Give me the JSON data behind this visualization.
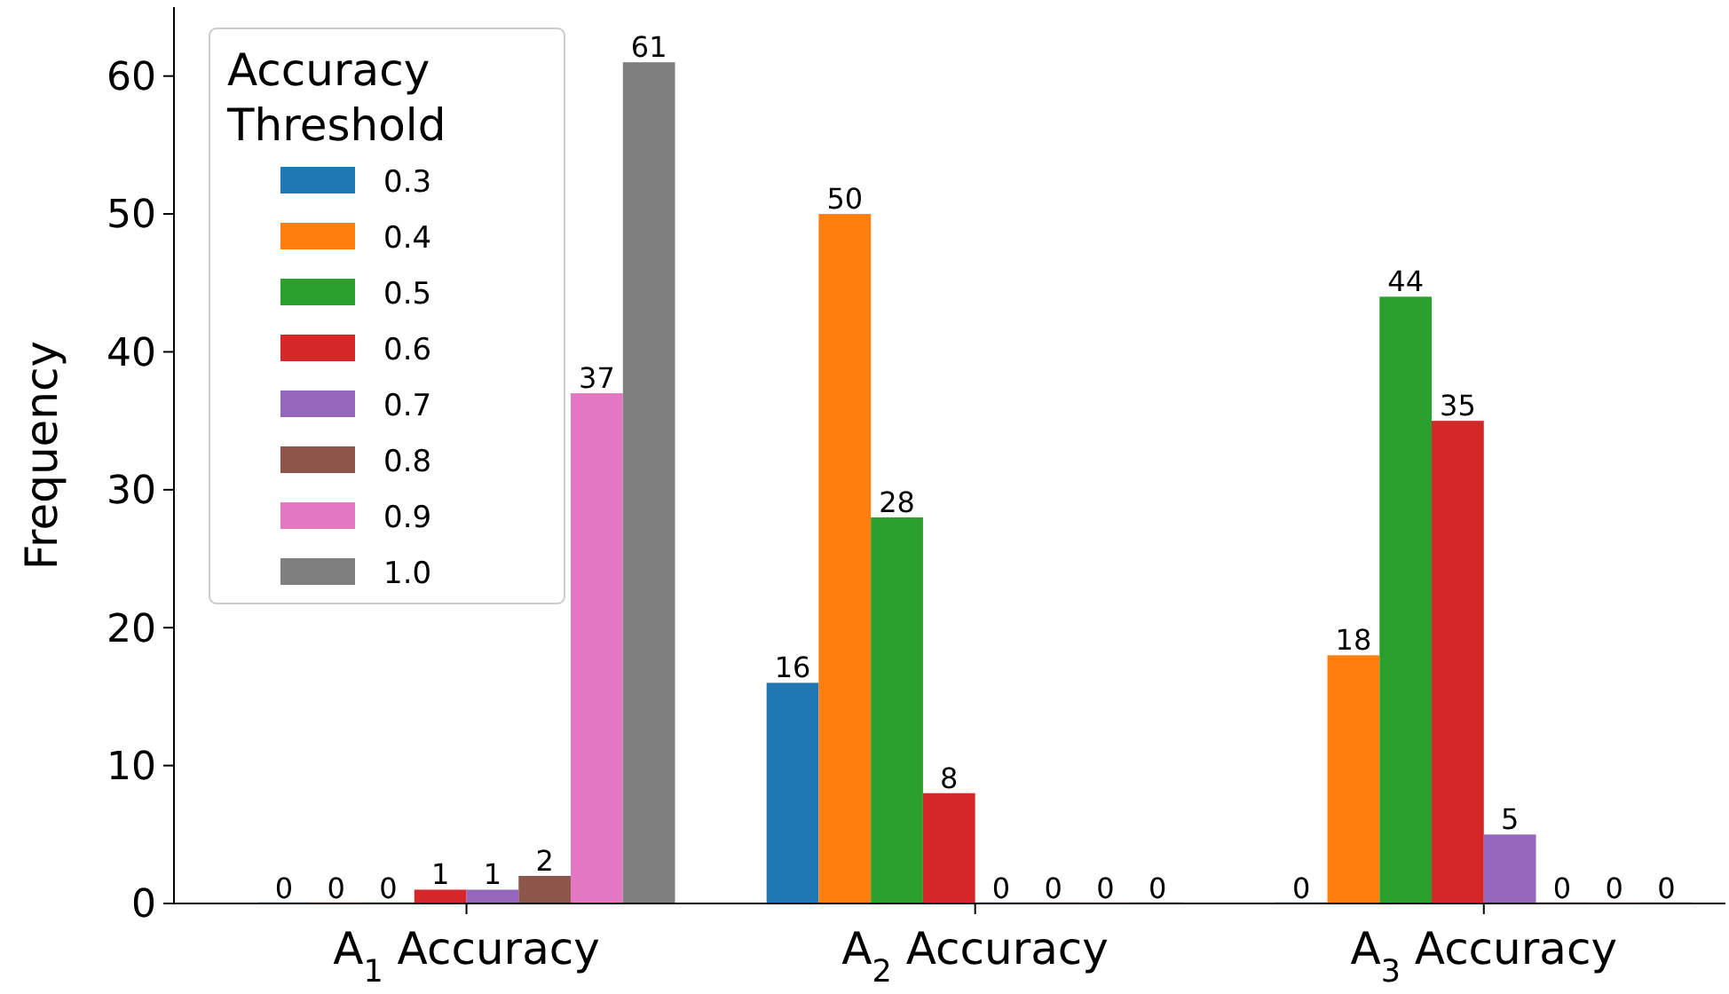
{
  "chart_data": {
    "type": "bar",
    "ylabel": "Frequency",
    "legend_title": "Accuracy Threshold",
    "categories": [
      "A$_{1}$ Accuracy",
      "A$_{2}$ Accuracy",
      "A$_{3}$ Accuracy"
    ],
    "ylim": [
      0,
      65
    ],
    "yticks": [
      0,
      10,
      20,
      30,
      40,
      50,
      60
    ],
    "legend": "top left",
    "data_labels": true,
    "series": [
      {
        "name": "0.3",
        "color": "#1f77b4",
        "values": [
          0,
          16,
          0
        ]
      },
      {
        "name": "0.4",
        "color": "#ff7f0e",
        "values": [
          0,
          50,
          18
        ]
      },
      {
        "name": "0.5",
        "color": "#2ca02c",
        "values": [
          0,
          28,
          44
        ]
      },
      {
        "name": "0.6",
        "color": "#d62728",
        "values": [
          1,
          8,
          35
        ]
      },
      {
        "name": "0.7",
        "color": "#9467bd",
        "values": [
          1,
          0,
          5
        ]
      },
      {
        "name": "0.8",
        "color": "#8c564b",
        "values": [
          2,
          0,
          0
        ]
      },
      {
        "name": "0.9",
        "color": "#e377c2",
        "values": [
          37,
          0,
          0
        ]
      },
      {
        "name": "1.0",
        "color": "#7f7f7f",
        "values": [
          61,
          0,
          0
        ]
      }
    ]
  }
}
